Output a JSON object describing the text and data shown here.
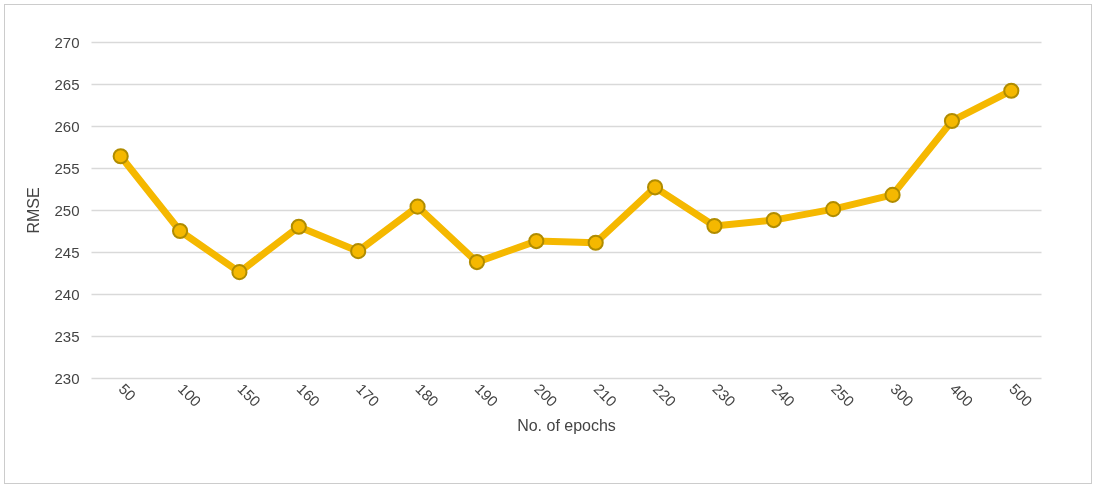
{
  "chart_data": {
    "type": "line",
    "xlabel": "No. of epochs",
    "ylabel": "RMSE",
    "categories": [
      "50",
      "100",
      "150",
      "160",
      "170",
      "180",
      "190",
      "200",
      "210",
      "220",
      "230",
      "240",
      "250",
      "300",
      "400",
      "500"
    ],
    "series": [
      {
        "color": "#f5b800",
        "values": [
          256.4,
          247.5,
          242.6,
          248.0,
          245.1,
          250.4,
          243.8,
          246.3,
          246.1,
          252.7,
          248.1,
          248.8,
          250.1,
          251.8,
          260.6,
          264.2
        ]
      }
    ],
    "ylim": [
      230,
      270
    ],
    "yticks": [
      230,
      235,
      240,
      245,
      250,
      255,
      260,
      265,
      270
    ],
    "grid": "y",
    "marker": "circle",
    "legend": false
  }
}
